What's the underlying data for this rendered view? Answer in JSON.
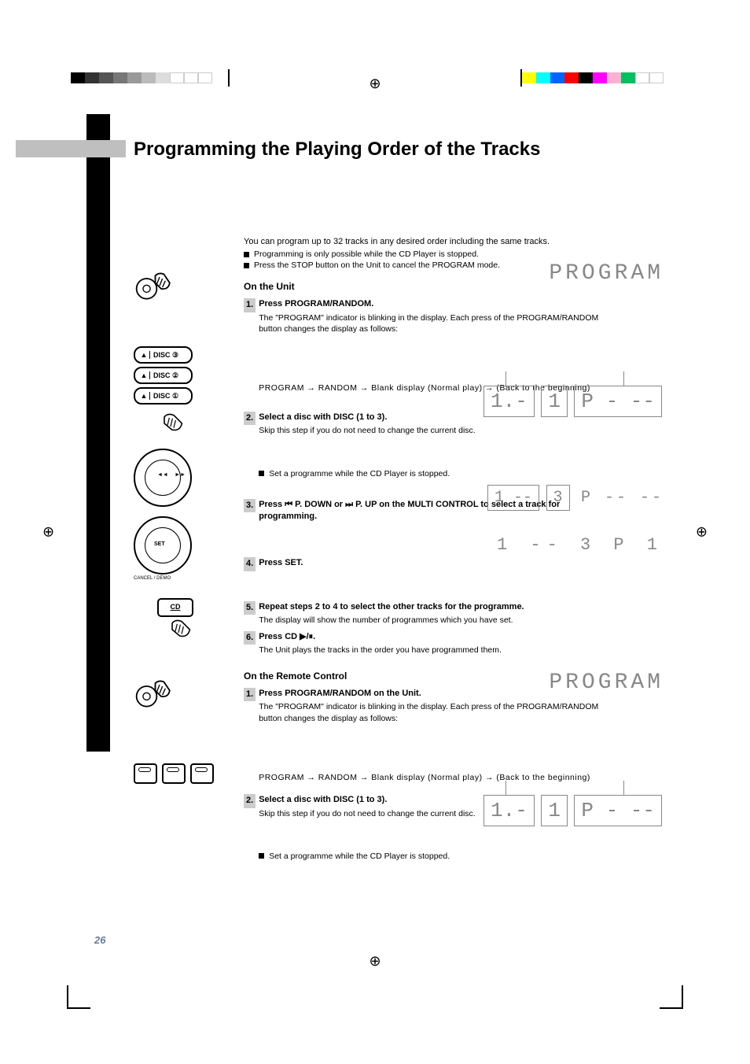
{
  "registration": {
    "left_grays": [
      "#000",
      "#333",
      "#555",
      "#777",
      "#999",
      "#bbb",
      "#ddd",
      "#fff",
      "#fff",
      "#fff"
    ],
    "right_colors": [
      "#ffff00",
      "#00ffff",
      "#0066ff",
      "#ff0000",
      "#000000",
      "#ff00ff",
      "#ffb0d0",
      "#00c060",
      "#fff",
      "#fff"
    ]
  },
  "title": "Programming the Playing Order of the Tracks",
  "intro": "You can program up to 32 tracks in any desired order including the same tracks.",
  "notes": [
    "Programming is only possible while the CD Player is stopped.",
    "Press the STOP button on the Unit to cancel the PROGRAM mode."
  ],
  "unit": {
    "heading": "On the Unit",
    "steps": [
      {
        "num": "1.",
        "title": "Press PROGRAM/RANDOM.",
        "desc": "The \"PROGRAM\" indicator is blinking in the display. Each press of the PROGRAM/RANDOM button changes the display as follows:",
        "arrows": "PROGRAM → RANDOM → Blank display (Normal play) → (Back to the beginning)",
        "display": "PROGRAM"
      },
      {
        "num": "2.",
        "title": "Select a disc with DISC (1 to 3).",
        "desc": "Skip this step if you do not need to change the current disc.",
        "note": "Set a programme while the CD Player is stopped.",
        "display_boxes": [
          "1.-",
          "1",
          "P - --"
        ]
      },
      {
        "num": "3.",
        "title": "Press ⏮ P. DOWN or ⏭ P. UP on the MULTI CONTROL to select a track for programming.",
        "desc": "",
        "display_boxes": [
          "1 --",
          "3",
          "P -- --"
        ]
      },
      {
        "num": "4.",
        "title": "Press SET.",
        "desc": "",
        "display_line": "1 --  3  P   1"
      },
      {
        "num": "5.",
        "title": "Repeat steps 2 to 4 to select the other tracks for the programme.",
        "desc": "The display will show the number of programmes which you have set."
      },
      {
        "num": "6.",
        "title": "Press CD ▶/⏸.",
        "desc": "The Unit plays the tracks in the order you have programmed them."
      }
    ]
  },
  "remote": {
    "heading": "On the Remote Control",
    "steps": [
      {
        "num": "1.",
        "title": "Press PROGRAM/RANDOM on the Unit.",
        "desc": "The \"PROGRAM\" indicator is blinking in the display. Each press of the PROGRAM/RANDOM button changes the display as follows:",
        "arrows": "PROGRAM → RANDOM → Blank display (Normal play) → (Back to the beginning)",
        "display": "PROGRAM"
      },
      {
        "num": "2.",
        "title": "Select a disc with DISC (1 to 3).",
        "desc": "Skip this step if you do not need to change the current disc.",
        "note": "Set a programme while the CD Player is stopped.",
        "display_boxes": [
          "1.-",
          "1",
          "P - --"
        ]
      }
    ]
  },
  "disc_buttons": [
    "DISC ③",
    "DISC ②",
    "DISC ①"
  ],
  "cd_button": "CD",
  "jog_labels": {
    "set": "SET",
    "cancel": "CANCEL / DEMO"
  },
  "page_number": "26"
}
